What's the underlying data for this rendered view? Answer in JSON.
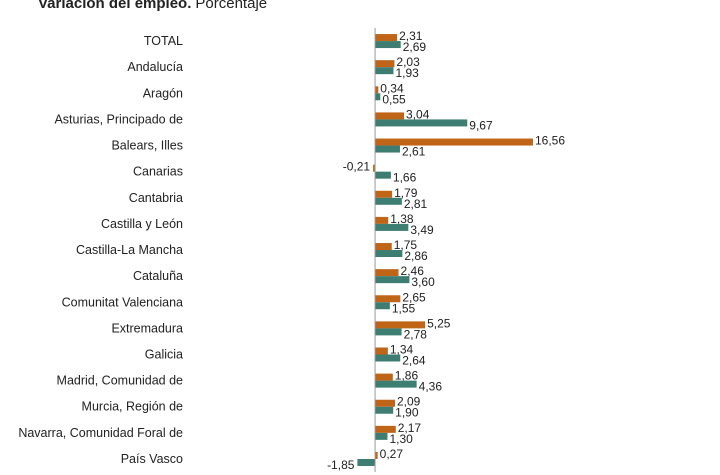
{
  "chart_data": {
    "type": "hbar",
    "title": "Variación del empleo.",
    "subtitle": "Porcentaje",
    "categories": [
      "TOTAL",
      "Andalucía",
      "Aragón",
      "Asturias, Principado de",
      "Balears, Illes",
      "Canarias",
      "Cantabria",
      "Castilla y León",
      "Castilla-La Mancha",
      "Cataluña",
      "Comunitat Valenciana",
      "Extremadura",
      "Galicia",
      "Madrid, Comunidad de",
      "Murcia, Región de",
      "Navarra, Comunidad Foral de",
      "País Vasco"
    ],
    "series": [
      {
        "color": "#c06418",
        "values": [
          2.31,
          2.03,
          0.34,
          3.04,
          16.56,
          -0.21,
          1.79,
          1.38,
          1.75,
          2.46,
          2.65,
          5.25,
          1.34,
          1.86,
          2.09,
          2.17,
          0.27
        ],
        "value_labels": [
          "2,31",
          "2,03",
          "0,34",
          "3,04",
          "16,56",
          "-0,21",
          "1,79",
          "1,38",
          "1,75",
          "2,46",
          "2,65",
          "5,25",
          "1,34",
          "1,86",
          "2,09",
          "2,17",
          "0,27"
        ]
      },
      {
        "color": "#3d7d72",
        "values": [
          2.69,
          1.93,
          0.55,
          9.67,
          2.61,
          1.66,
          2.81,
          3.49,
          2.86,
          3.6,
          1.55,
          2.78,
          2.64,
          4.36,
          1.9,
          1.3,
          -1.85
        ],
        "value_labels": [
          "2,69",
          "1,93",
          "0,55",
          "9,67",
          "2,61",
          "1,66",
          "2,81",
          "3,49",
          "2,86",
          "3,60",
          "1,55",
          "2,78",
          "2,64",
          "4,36",
          "1,90",
          "1,30",
          "-1,85"
        ]
      }
    ],
    "xlim": [
      -2,
      18
    ]
  }
}
